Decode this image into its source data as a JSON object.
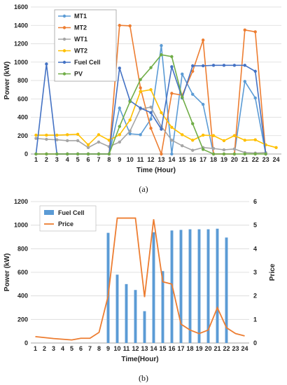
{
  "chart_data": [
    {
      "type": "line",
      "caption": "(a)",
      "xlabel": "Time (Hour)",
      "ylabel": "Power (kW)",
      "ylim": [
        0,
        1600
      ],
      "yticks": [
        0,
        200,
        400,
        600,
        800,
        1000,
        1200,
        1400,
        1600
      ],
      "x": [
        1,
        2,
        3,
        4,
        5,
        6,
        7,
        8,
        9,
        10,
        11,
        12,
        13,
        14,
        15,
        16,
        17,
        18,
        19,
        20,
        21,
        22,
        23,
        24
      ],
      "grid": "horizontal",
      "legend": "top-left",
      "series": [
        {
          "name": "MT1",
          "color": "#5B9BD5",
          "values": [
            0,
            0,
            0,
            0,
            0,
            0,
            0,
            0,
            500,
            220,
            210,
            380,
            1180,
            0,
            870,
            650,
            540,
            0,
            0,
            0,
            790,
            610,
            0,
            null
          ]
        },
        {
          "name": "MT2",
          "color": "#ED7D31",
          "values": [
            0,
            0,
            0,
            0,
            0,
            0,
            0,
            0,
            1400,
            1395,
            720,
            280,
            0,
            660,
            640,
            900,
            1240,
            0,
            0,
            0,
            1350,
            1330,
            0,
            null
          ]
        },
        {
          "name": "WT1",
          "color": "#A5A5A5",
          "values": [
            170,
            160,
            155,
            145,
            145,
            70,
            130,
            80,
            130,
            250,
            490,
            510,
            300,
            150,
            90,
            40,
            70,
            60,
            45,
            55,
            15,
            10,
            15,
            null
          ]
        },
        {
          "name": "WT2",
          "color": "#FFC000",
          "values": [
            205,
            205,
            205,
            210,
            215,
            100,
            210,
            150,
            210,
            370,
            680,
            700,
            450,
            290,
            210,
            150,
            205,
            200,
            145,
            200,
            150,
            155,
            100,
            70
          ]
        },
        {
          "name": "Fuel Cell",
          "color": "#4472C4",
          "values": [
            0,
            980,
            0,
            0,
            0,
            0,
            0,
            0,
            935,
            580,
            500,
            450,
            270,
            950,
            610,
            960,
            960,
            965,
            965,
            965,
            965,
            900,
            0,
            null
          ]
        },
        {
          "name": "PV",
          "color": "#70AD47",
          "values": [
            0,
            0,
            0,
            0,
            0,
            0,
            0,
            0,
            300,
            570,
            810,
            940,
            1080,
            1060,
            620,
            330,
            50,
            0,
            0,
            0,
            0,
            0,
            0,
            null
          ]
        }
      ]
    },
    {
      "type": "bar",
      "caption": "(b)",
      "xlabel": "Time(Hour)",
      "ylabel": "Power (kW)",
      "y2label": "Price",
      "ylim": [
        0,
        1200
      ],
      "yticks": [
        0,
        200,
        400,
        600,
        800,
        1000,
        1200
      ],
      "y2lim": [
        0,
        6
      ],
      "y2ticks": [
        0,
        1,
        2,
        3,
        4,
        5,
        6
      ],
      "categories": [
        1,
        2,
        3,
        4,
        5,
        6,
        7,
        8,
        9,
        10,
        11,
        12,
        13,
        14,
        15,
        16,
        17,
        18,
        19,
        20,
        21,
        22,
        23,
        24
      ],
      "legend": "top-left",
      "series": [
        {
          "name": "Fuel Cell",
          "kind": "bar",
          "axis": "left",
          "color": "#5B9BD5",
          "values": [
            0,
            0,
            0,
            0,
            0,
            0,
            0,
            0,
            935,
            580,
            500,
            450,
            270,
            940,
            610,
            955,
            960,
            965,
            965,
            965,
            970,
            895,
            0,
            0
          ]
        },
        {
          "name": "Price",
          "kind": "line",
          "axis": "right",
          "color": "#ED7D31",
          "values": [
            0.27,
            0.23,
            0.19,
            0.16,
            0.13,
            0.2,
            0.2,
            0.45,
            2.0,
            5.3,
            5.3,
            5.3,
            1.95,
            5.25,
            2.6,
            2.5,
            0.8,
            0.55,
            0.4,
            0.55,
            1.5,
            0.65,
            0.4,
            0.3
          ]
        }
      ]
    }
  ]
}
